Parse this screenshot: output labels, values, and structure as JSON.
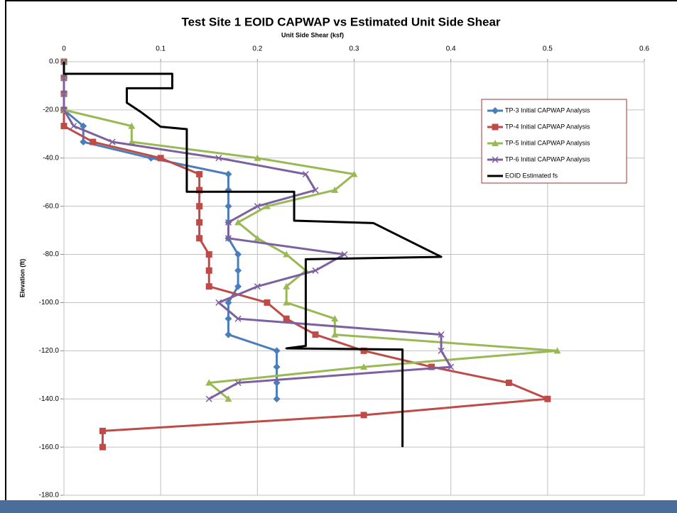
{
  "chart_data": {
    "type": "scatter",
    "title": "Test Site 1 EOID CAPWAP vs Estimated Unit Side Shear",
    "x_label": "Unit Side Shear (ksf)",
    "y_label": "Elevation (ft)",
    "xlim": [
      0,
      0.6
    ],
    "xticks": [
      0,
      0.1,
      0.2,
      0.3,
      0.4,
      0.5,
      0.6
    ],
    "ylim": [
      -180,
      0
    ],
    "yticks": [
      {
        "value": 0,
        "label": "0.0"
      },
      {
        "value": -20,
        "label": "-20.0"
      },
      {
        "value": -40,
        "label": "-40.0"
      },
      {
        "value": -60,
        "label": "-60.0"
      },
      {
        "value": -80,
        "label": "-80.0"
      },
      {
        "value": -100,
        "label": "-100.0"
      },
      {
        "value": -120,
        "label": "-120.0"
      },
      {
        "value": -140,
        "label": "-140.0"
      },
      {
        "value": -160,
        "label": "-160.0"
      },
      {
        "value": -180,
        "label": "-180.0"
      }
    ],
    "grid": true,
    "legend": "upper right",
    "series": [
      {
        "name": "TP-3 Initial CAPWAP Analysis",
        "color": "#4a7ebb",
        "marker": "diamond",
        "x": [
          0,
          0,
          0,
          0,
          0.02,
          0.02,
          0.09,
          0.17,
          0.17,
          0.17,
          0.17,
          0.17,
          0.18,
          0.18,
          0.18,
          0.17,
          0.17,
          0.17,
          0.22,
          0.22,
          0.22,
          0.22
        ],
        "values": [
          0,
          -6.7,
          -13.3,
          -20,
          -26.7,
          -33.3,
          -40,
          -46.7,
          -53.3,
          -60,
          -66.7,
          -73.3,
          -80,
          -86.7,
          -93.3,
          -100,
          -106.7,
          -113.3,
          -120,
          -126.7,
          -133.3,
          -140
        ]
      },
      {
        "name": "TP-4 Initial CAPWAP Analysis",
        "color": "#be4b48",
        "marker": "square",
        "x": [
          0,
          0,
          0,
          0,
          0,
          0.03,
          0.1,
          0.14,
          0.14,
          0.14,
          0.14,
          0.14,
          0.15,
          0.15,
          0.15,
          0.21,
          0.23,
          0.26,
          0.31,
          0.38,
          0.46,
          0.5,
          0.31,
          0.04,
          0.04
        ],
        "values": [
          0,
          -6.7,
          -13.3,
          -20,
          -26.7,
          -33.3,
          -40,
          -46.7,
          -53.3,
          -60,
          -66.7,
          -73.3,
          -80,
          -86.7,
          -93.3,
          -100,
          -106.7,
          -113.3,
          -120,
          -126.7,
          -133.3,
          -140,
          -146.7,
          -153.3,
          -160
        ]
      },
      {
        "name": "TP-5 Initial CAPWAP Analysis",
        "color": "#98b954",
        "marker": "triangle",
        "x": [
          0,
          0,
          0,
          0,
          0.07,
          0.07,
          0.2,
          0.3,
          0.28,
          0.21,
          0.18,
          0.2,
          0.23,
          0.25,
          0.23,
          0.23,
          0.28,
          0.28,
          0.51,
          0.31,
          0.15,
          0.17
        ],
        "values": [
          0,
          -6.7,
          -13.3,
          -20,
          -26.7,
          -33.3,
          -40,
          -46.7,
          -53.3,
          -60,
          -66.7,
          -73.3,
          -80,
          -86.7,
          -93.3,
          -100,
          -106.7,
          -113.3,
          -120,
          -126.7,
          -133.3,
          -140
        ]
      },
      {
        "name": "TP-6 Initial CAPWAP Analysis",
        "color": "#7d60a0",
        "marker": "x",
        "x": [
          0,
          0,
          0,
          0,
          0.01,
          0.05,
          0.16,
          0.25,
          0.26,
          0.2,
          0.17,
          0.17,
          0.29,
          0.26,
          0.2,
          0.16,
          0.18,
          0.39,
          0.39,
          0.4,
          0.18,
          0.15
        ],
        "values": [
          0,
          -6.7,
          -13.3,
          -20,
          -26.7,
          -33.3,
          -40,
          -46.7,
          -53.3,
          -60,
          -66.7,
          -73.3,
          -80,
          -86.7,
          -93.3,
          -100,
          -106.7,
          -113.3,
          -120,
          -126.7,
          -133.3,
          -140
        ]
      },
      {
        "name": "EOID Estimated fs",
        "color": "#000000",
        "marker": "none",
        "x": [
          0,
          0,
          0.112,
          0.112,
          0.065,
          0.065,
          0.08,
          0.1,
          0.127,
          0.127,
          0.238,
          0.238,
          0.32,
          0.35,
          0.39,
          0.25,
          0.25,
          0.23,
          0.35,
          0.35
        ],
        "values": [
          0,
          -5,
          -5,
          -11,
          -11,
          -17,
          -21,
          -27,
          -28,
          -54,
          -54,
          -66,
          -67,
          -73,
          -81,
          -82,
          -118,
          -119,
          -119.5,
          -160
        ]
      }
    ]
  }
}
